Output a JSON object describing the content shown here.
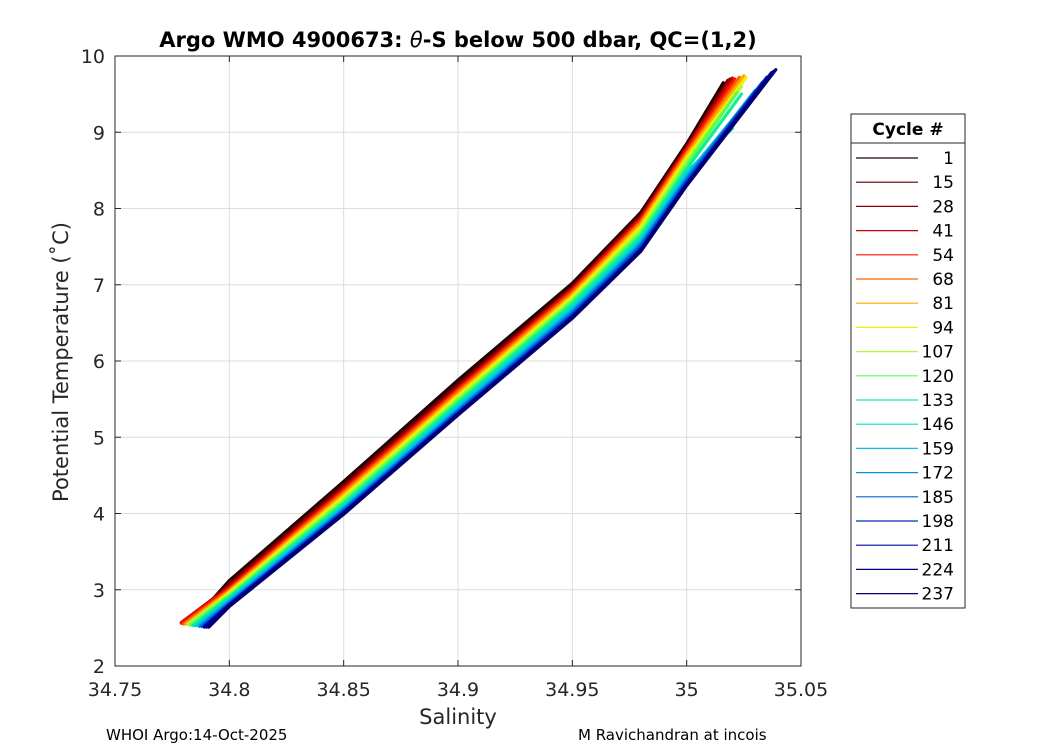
{
  "chart_data": {
    "type": "line",
    "title": "Argo WMO 4900673: θ-S below 500 dbar,  QC=(1,2)",
    "title_prefix": "Argo WMO 4900673: ",
    "title_theta": "θ",
    "title_suffix": "-S below 500 dbar,  QC=(1,2)",
    "xlabel": "Salinity",
    "ylabel": "Potential Temperature (˚C)",
    "xlim": [
      34.75,
      35.05
    ],
    "ylim": [
      2,
      10
    ],
    "x_ticks": [
      "34.75",
      "34.8",
      "34.85",
      "34.9",
      "34.95",
      "35",
      "35.05"
    ],
    "y_ticks": [
      "2",
      "3",
      "4",
      "5",
      "6",
      "7",
      "8",
      "9",
      "10"
    ],
    "grid": true,
    "legend_title": "Cycle #",
    "legend_position": "right",
    "series": [
      {
        "name": "1",
        "color": "#200000",
        "x": [
          34.784,
          34.8,
          34.85,
          34.9,
          34.95,
          34.98,
          35.0,
          35.016
        ],
        "y": [
          2.58,
          3.12,
          4.42,
          5.75,
          7.02,
          7.95,
          8.85,
          9.65
        ]
      },
      {
        "name": "15",
        "color": "#550000",
        "x": [
          34.782,
          34.8,
          34.85,
          34.9,
          34.95,
          34.98,
          35.0,
          35.018
        ],
        "y": [
          2.56,
          3.08,
          4.38,
          5.7,
          6.98,
          7.92,
          8.82,
          9.68
        ]
      },
      {
        "name": "28",
        "color": "#8a0000",
        "x": [
          34.78,
          34.8,
          34.85,
          34.9,
          34.95,
          34.98,
          35.0,
          35.019
        ],
        "y": [
          2.56,
          3.06,
          4.35,
          5.67,
          6.96,
          7.9,
          8.8,
          9.7
        ]
      },
      {
        "name": "41",
        "color": "#c00000",
        "x": [
          34.779,
          34.8,
          34.85,
          34.9,
          34.95,
          34.98,
          35.0,
          35.02
        ],
        "y": [
          2.57,
          3.04,
          4.33,
          5.65,
          6.95,
          7.88,
          8.79,
          9.71
        ]
      },
      {
        "name": "54",
        "color": "#f51500",
        "x": [
          34.779,
          34.8,
          34.85,
          34.9,
          34.95,
          34.98,
          35.0,
          35.021
        ],
        "y": [
          2.56,
          3.02,
          4.31,
          5.63,
          6.93,
          7.86,
          8.77,
          9.7
        ]
      },
      {
        "name": "68",
        "color": "#ff6000",
        "x": [
          34.78,
          34.8,
          34.85,
          34.9,
          34.95,
          34.98,
          35.0,
          35.023
        ],
        "y": [
          2.55,
          3.0,
          4.28,
          5.6,
          6.9,
          7.83,
          8.73,
          9.72
        ]
      },
      {
        "name": "81",
        "color": "#ffa800",
        "x": [
          34.781,
          34.8,
          34.85,
          34.9,
          34.95,
          34.98,
          35.0,
          35.025
        ],
        "y": [
          2.55,
          2.98,
          4.25,
          5.57,
          6.87,
          7.8,
          8.7,
          9.74
        ]
      },
      {
        "name": "94",
        "color": "#f5f000",
        "x": [
          34.782,
          34.8,
          34.85,
          34.9,
          34.95,
          34.98,
          35.0,
          35.026
        ],
        "y": [
          2.54,
          2.96,
          4.22,
          5.54,
          6.84,
          7.76,
          8.66,
          9.72
        ]
      },
      {
        "name": "107",
        "color": "#a8ff30",
        "x": [
          34.782,
          34.8,
          34.85,
          34.9,
          34.95,
          34.98,
          35.0,
          35.024
        ],
        "y": [
          2.55,
          2.94,
          4.19,
          5.51,
          6.81,
          7.72,
          8.62,
          9.6
        ]
      },
      {
        "name": "120",
        "color": "#55ff55",
        "x": [
          34.783,
          34.8,
          34.85,
          34.9,
          34.95,
          34.98,
          35.0,
          35.022
        ],
        "y": [
          2.54,
          2.92,
          4.16,
          5.48,
          6.78,
          7.68,
          8.57,
          9.52
        ]
      },
      {
        "name": "133",
        "color": "#10f090",
        "x": [
          34.784,
          34.8,
          34.85,
          34.9,
          34.95,
          34.98,
          35.0,
          35.024
        ],
        "y": [
          2.53,
          2.9,
          4.13,
          5.45,
          6.75,
          7.64,
          8.52,
          9.5
        ]
      },
      {
        "name": "146",
        "color": "#00e0c0",
        "x": [
          34.785,
          34.8,
          34.85,
          34.9,
          34.95,
          34.98,
          35.0,
          35.02
        ],
        "y": [
          2.53,
          2.88,
          4.1,
          5.42,
          6.71,
          7.6,
          8.48,
          9.05
        ]
      },
      {
        "name": "159",
        "color": "#00c0f0",
        "x": [
          34.786,
          34.8,
          34.85,
          34.9,
          34.95,
          34.98,
          35.0,
          35.028
        ],
        "y": [
          2.53,
          2.86,
          4.08,
          5.39,
          6.68,
          7.57,
          8.44,
          9.45
        ]
      },
      {
        "name": "172",
        "color": "#0090e0",
        "x": [
          34.787,
          34.8,
          34.85,
          34.9,
          34.95,
          34.98,
          35.0,
          35.03
        ],
        "y": [
          2.52,
          2.84,
          4.06,
          5.36,
          6.65,
          7.54,
          8.4,
          9.55
        ]
      },
      {
        "name": "185",
        "color": "#0060d0",
        "x": [
          34.788,
          34.8,
          34.85,
          34.9,
          34.95,
          34.98,
          35.0,
          35.033
        ],
        "y": [
          2.52,
          2.82,
          4.04,
          5.34,
          6.62,
          7.51,
          8.37,
          9.65
        ]
      },
      {
        "name": "198",
        "color": "#0030c0",
        "x": [
          34.789,
          34.8,
          34.85,
          34.9,
          34.95,
          34.98,
          35.0,
          35.035
        ],
        "y": [
          2.52,
          2.81,
          4.02,
          5.32,
          6.6,
          7.48,
          8.34,
          9.72
        ]
      },
      {
        "name": "211",
        "color": "#0000b0",
        "x": [
          34.789,
          34.8,
          34.85,
          34.9,
          34.95,
          34.98,
          35.0,
          35.037
        ],
        "y": [
          2.51,
          2.8,
          4.01,
          5.31,
          6.58,
          7.46,
          8.32,
          9.78
        ]
      },
      {
        "name": "224",
        "color": "#000090",
        "x": [
          34.79,
          34.8,
          34.85,
          34.9,
          34.95,
          34.98,
          35.0,
          35.038
        ],
        "y": [
          2.51,
          2.79,
          4.0,
          5.3,
          6.57,
          7.45,
          8.31,
          9.8
        ]
      },
      {
        "name": "237",
        "color": "#000070",
        "x": [
          34.791,
          34.8,
          34.85,
          34.9,
          34.95,
          34.98,
          35.0,
          35.039
        ],
        "y": [
          2.51,
          2.78,
          3.99,
          5.29,
          6.56,
          7.44,
          8.3,
          9.82
        ]
      }
    ]
  },
  "footer": {
    "left": "WHOI Argo:14-Oct-2025",
    "right": "M Ravichandran at incois"
  }
}
